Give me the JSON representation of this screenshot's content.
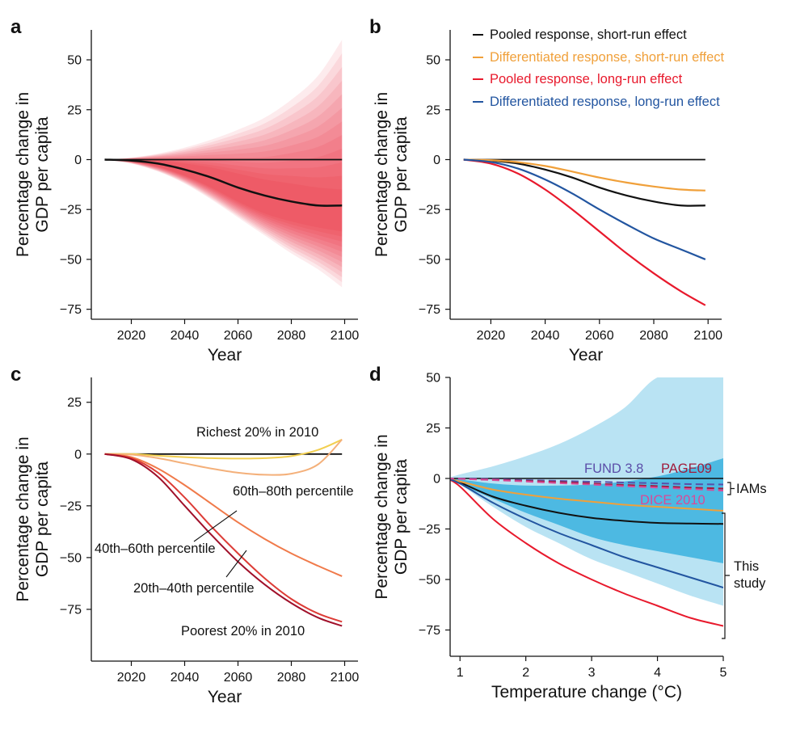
{
  "figure": "GDP per capita projections",
  "colors": {
    "black": "#111111",
    "orange": "#f0a03a",
    "red": "#e8192c",
    "blue": "#2255a0",
    "fund": "#5b4ea8",
    "page09": "#a01c3c",
    "dice": "#d94a98",
    "shade_dark": "#4db9e2",
    "shade_light": "#b9e3f3",
    "quint_richest": "#f2cf50",
    "quint_60_80": "#f4b07a",
    "quint_40_60": "#f07a4a",
    "quint_20_40": "#dd3c36",
    "quint_poorest": "#a0102a"
  },
  "chart_data": [
    {
      "panel": "a",
      "type": "area",
      "xlabel": "Year",
      "ylabel_line1": "Percentage change in",
      "ylabel_line2": "GDP per capita",
      "xlim": [
        2005,
        2105
      ],
      "ylim": [
        -80,
        65
      ],
      "xticks": [
        2020,
        2040,
        2060,
        2080,
        2100
      ],
      "yticks": [
        50,
        25,
        0,
        -25,
        -50,
        -75
      ],
      "x": [
        2010,
        2020,
        2030,
        2040,
        2050,
        2060,
        2070,
        2080,
        2090,
        2099
      ],
      "series": [
        {
          "values": [
            0,
            -0.5,
            -2,
            -5,
            -9,
            -14,
            -18,
            -21,
            -23,
            -23
          ]
        }
      ],
      "band_outer_upper": [
        0,
        1,
        3,
        6,
        10,
        15,
        21,
        30,
        42,
        60
      ],
      "band_outer_lower": [
        0,
        -2,
        -6,
        -12,
        -20,
        -29,
        -38,
        -47,
        -55,
        -64
      ],
      "band_inner_upper": [
        0,
        0.2,
        -0.5,
        -2,
        -4,
        -7,
        -10,
        -12,
        -14,
        -15
      ],
      "band_inner_lower": [
        0,
        -1,
        -3.5,
        -8,
        -14,
        -21,
        -27,
        -31,
        -34,
        -36
      ]
    },
    {
      "panel": "b",
      "type": "line",
      "xlabel": "Year",
      "ylabel_line1": "Percentage change in",
      "ylabel_line2": "GDP per capita",
      "xlim": [
        2005,
        2105
      ],
      "ylim": [
        -80,
        65
      ],
      "xticks": [
        2020,
        2040,
        2060,
        2080,
        2100
      ],
      "yticks": [
        50,
        25,
        0,
        -25,
        -50,
        -75
      ],
      "x": [
        2010,
        2020,
        2030,
        2040,
        2050,
        2060,
        2070,
        2080,
        2090,
        2099
      ],
      "legend_position": "top",
      "series": [
        {
          "name": "Pooled response, short-run effect",
          "color": "black",
          "values": [
            0,
            -0.5,
            -2,
            -5,
            -9,
            -14,
            -18,
            -21,
            -23,
            -23
          ]
        },
        {
          "name": "Differentiated response, short-run effect",
          "color": "orange",
          "values": [
            0,
            -0.3,
            -1.3,
            -3.2,
            -6,
            -9,
            -11.5,
            -13.5,
            -15,
            -15.5
          ]
        },
        {
          "name": "Pooled response, long-run effect",
          "color": "red",
          "values": [
            0,
            -2,
            -7,
            -15,
            -25,
            -36,
            -47,
            -57,
            -66,
            -73
          ]
        },
        {
          "name": "Differentiated response, long-run effect",
          "color": "blue",
          "values": [
            0,
            -1.2,
            -4.5,
            -10,
            -17,
            -25,
            -32.5,
            -39.5,
            -45,
            -50
          ]
        }
      ]
    },
    {
      "panel": "c",
      "type": "line",
      "xlabel": "Year",
      "ylabel_line1": "Percentage change in",
      "ylabel_line2": "GDP per capita",
      "xlim": [
        2005,
        2105
      ],
      "ylim": [
        -100,
        37
      ],
      "xticks": [
        2020,
        2040,
        2060,
        2080,
        2100
      ],
      "yticks": [
        25,
        0,
        -25,
        -50,
        -75
      ],
      "x": [
        2010,
        2020,
        2030,
        2040,
        2050,
        2060,
        2070,
        2080,
        2090,
        2099
      ],
      "series": [
        {
          "name": "Richest 20% in 2010",
          "color": "quint_richest",
          "values": [
            0,
            0,
            -0.8,
            -1.5,
            -2,
            -2.2,
            -2,
            -1,
            2,
            7
          ]
        },
        {
          "name": "60th–80th percentile",
          "color": "quint_60_80",
          "values": [
            0,
            -0.3,
            -2,
            -4.5,
            -7,
            -9,
            -10,
            -9.5,
            -5,
            7
          ]
        },
        {
          "name": "40th–60th percentile",
          "color": "quint_40_60",
          "values": [
            0,
            -1.5,
            -7,
            -15,
            -24,
            -33,
            -41,
            -48,
            -54,
            -59
          ]
        },
        {
          "name": "20th–40th percentile",
          "color": "quint_20_40",
          "values": [
            0,
            -2,
            -9,
            -21,
            -35,
            -48,
            -60,
            -70,
            -77,
            -81
          ]
        },
        {
          "name": "Poorest 20% in 2010",
          "color": "quint_poorest",
          "values": [
            0,
            -2.5,
            -11,
            -25,
            -39,
            -52,
            -63,
            -72,
            -79,
            -83
          ]
        }
      ],
      "annotations": [
        "Richest 20% in 2010",
        "60th–80th percentile",
        "40th–60th percentile",
        "20th–40th percentile",
        "Poorest 20% in 2010"
      ]
    },
    {
      "panel": "d",
      "type": "line",
      "xlabel": "Temperature change (°C)",
      "ylabel_line1": "Percentage change in",
      "ylabel_line2": "GDP per capita",
      "xlim": [
        0.85,
        5.0
      ],
      "ylim": [
        -88,
        50
      ],
      "xticks": [
        1,
        2,
        3,
        4,
        5
      ],
      "yticks": [
        50,
        25,
        0,
        -25,
        -50,
        -75
      ],
      "x": [
        0.8,
        1.0,
        1.5,
        2.0,
        2.5,
        3.0,
        3.5,
        4.0,
        4.5,
        5.0
      ],
      "series": [
        {
          "name": "Pooled response, short-run effect",
          "color": "black",
          "values": [
            0,
            -2,
            -9,
            -13.5,
            -17,
            -19.5,
            -21,
            -22,
            -22.3,
            -22.5
          ]
        },
        {
          "name": "Differentiated response, short-run effect",
          "color": "orange",
          "values": [
            0,
            -1.5,
            -5.5,
            -8,
            -10,
            -11.5,
            -13,
            -14,
            -15,
            -16
          ]
        },
        {
          "name": "Pooled response, long-run effect",
          "color": "red",
          "values": [
            0,
            -4,
            -20,
            -32,
            -42,
            -50,
            -57,
            -63,
            -69,
            -73
          ]
        },
        {
          "name": "Differentiated response, long-run effect",
          "color": "blue",
          "values": [
            0,
            -2.5,
            -12,
            -20,
            -27,
            -33,
            -39,
            -44,
            -49,
            -54
          ]
        },
        {
          "name": "FUND 3.8",
          "color": "fund",
          "dashed": true,
          "values": [
            0,
            0,
            -0.3,
            -0.8,
            -1.2,
            -1.6,
            -2,
            -2.4,
            -2.8,
            -3
          ]
        },
        {
          "name": "PAGE09",
          "color": "page09",
          "dashed": true,
          "values": [
            0,
            -0.2,
            -0.6,
            -1.2,
            -1.8,
            -2.5,
            -3.2,
            -3.8,
            -4.5,
            -5
          ]
        },
        {
          "name": "DICE 2010",
          "color": "dice",
          "dashed": true,
          "values": [
            0,
            -0.2,
            -0.8,
            -1.5,
            -2.3,
            -3,
            -3.8,
            -4.5,
            -5.2,
            -6
          ]
        }
      ],
      "band_light_upper": [
        0,
        2,
        6,
        11,
        17,
        25,
        35,
        50,
        50,
        50
      ],
      "band_light_lower": [
        0,
        -3,
        -14,
        -24,
        -32,
        -40,
        -46,
        -52,
        -58,
        -63
      ],
      "band_dark_upper": [
        0,
        -0.5,
        -2.5,
        -3.5,
        -3.5,
        -3,
        -1.5,
        1,
        5,
        10
      ],
      "band_dark_lower": [
        0,
        -3,
        -10,
        -17,
        -23,
        -29,
        -33,
        -36,
        -39,
        -42
      ],
      "labels": {
        "fund": "FUND 3.8",
        "page09": "PAGE09",
        "dice": "DICE 2010",
        "iams": "IAMs",
        "this_study_1": "This",
        "this_study_2": "study"
      }
    }
  ]
}
